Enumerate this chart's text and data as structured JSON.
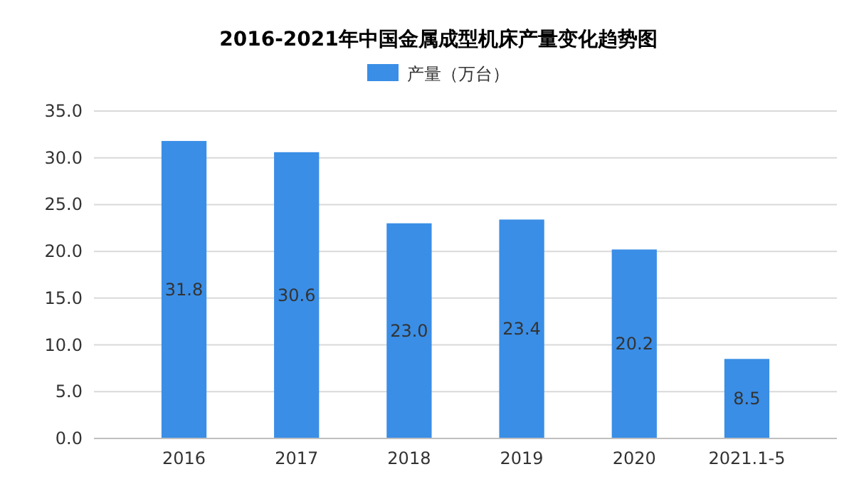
{
  "chart_data": {
    "type": "bar",
    "title": "2016-2021年中国金属成型机床产量变化趋势图",
    "categories": [
      "2016",
      "2017",
      "2018",
      "2019",
      "2020",
      "2021.1-5"
    ],
    "series": [
      {
        "name": "产量（万台）",
        "color": "#3a8ee6",
        "values": [
          31.8,
          30.6,
          23.0,
          23.4,
          20.2,
          8.5
        ],
        "value_labels": [
          "31.8",
          "30.6",
          "23.0",
          "23.4",
          "20.2",
          "8.5"
        ]
      }
    ],
    "ylim": [
      0,
      35
    ],
    "yticks": [
      {
        "value": 0,
        "label": "0.0"
      },
      {
        "value": 5,
        "label": "5.0"
      },
      {
        "value": 10,
        "label": "10.0"
      },
      {
        "value": 15,
        "label": "15.0"
      },
      {
        "value": 20,
        "label": "20.0"
      },
      {
        "value": 25,
        "label": "25.0"
      },
      {
        "value": 30,
        "label": "30.0"
      },
      {
        "value": 35,
        "label": "35.0"
      }
    ],
    "grid": "y",
    "legend": "top"
  }
}
